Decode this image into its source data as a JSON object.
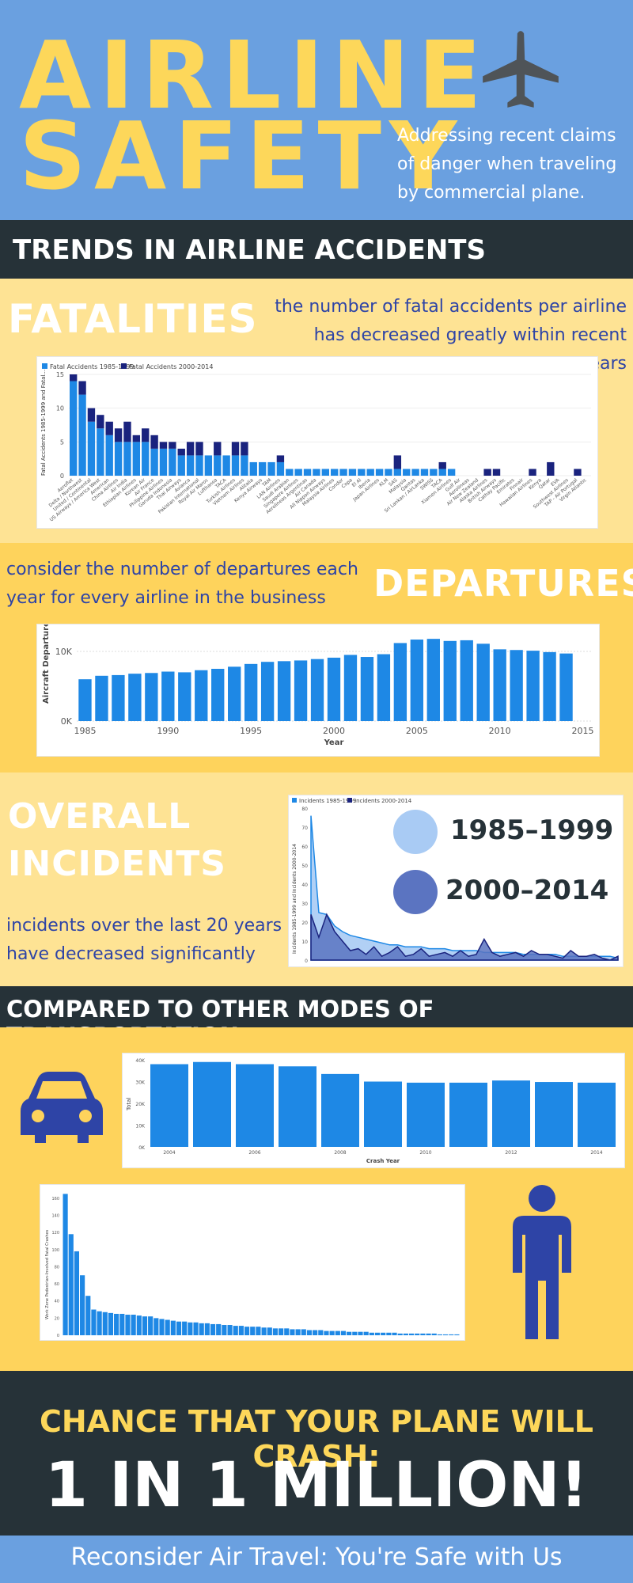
{
  "header": {
    "title_line1": "AIRLINE",
    "title_line2": "SAFETY",
    "subtitle": "Addressing recent claims of danger when traveling by commercial plane."
  },
  "sections": {
    "trends": "TRENDS IN AIRLINE ACCIDENTS",
    "fatalities": {
      "title": "FATALITIES",
      "text": "the number of fatal accidents per airline has decreased greatly within recent years"
    },
    "departures": {
      "title": "DEPARTURES",
      "text": "consider the number of departures each year for every airline in the business"
    },
    "incidents": {
      "title_line1": "OVERALL",
      "title_line2": "INCIDENTS",
      "text": "incidents over the last 20 years have decreased significantly",
      "legend1": "1985–1999",
      "legend2": "2000–2014"
    },
    "compare": "COMPARED TO OTHER MODES OF TRANSPORTATION",
    "chance_title": "CHANCE THAT YOUR PLANE WILL CRASH:",
    "chance_value": "1 IN 1 MILLION!",
    "footer": "Reconsider Air Travel: You're Safe with Us"
  },
  "icons": {
    "plane": "airplane-icon",
    "car": "car-icon",
    "pedestrian": "pedestrian-icon"
  },
  "colors": {
    "accent_yellow": "#fdd75a",
    "header_blue": "#6aa0e0",
    "dark": "#263238",
    "series_light": "#1e88e5",
    "series_dark": "#1a237e"
  },
  "chart_data": [
    {
      "type": "bar",
      "stacked": true,
      "legend": [
        "Fatal Accidents 1985-1999",
        "Fatal Accidents 2000-2014"
      ],
      "ylabel": "Fatal Accidents 1985-1999 and Fatal...",
      "yticks": [
        "0",
        "5",
        "10",
        "15"
      ],
      "ylim": [
        0,
        15
      ],
      "categories": [
        "Aeroflot",
        "Delta / Northwest",
        "United / Continental",
        "US Airways / America West",
        "American",
        "China Airlines",
        "Air India",
        "Ethiopian Airlines",
        "Korean Air",
        "Air France",
        "Philippine Airlines",
        "Garuda Indonesia",
        "Thai Airways",
        "Avianca",
        "Pakistan International",
        "Royal Air Maroc",
        "Lufthansa",
        "TACA",
        "Turkish Airlines",
        "Vietnam Airlines",
        "Alitalia",
        "Kenya Airways",
        "TAM",
        "LAN Airlines",
        "Saudi Arabian",
        "Singapore Airlines",
        "Aerolineas Argentinas",
        "Air Canada",
        "All Nippon Airways",
        "Malaysia Airlines",
        "Condor",
        "Copa",
        "El Al",
        "Iberia",
        "Japan Airlines",
        "KLM",
        "SAS",
        "Malaysia",
        "Qantas",
        "Sri Lankan / AirLanka",
        "SWISS",
        "TACA ",
        "Xiamen Airlines",
        "Gulf Air",
        "Aerolineas",
        "Air New Zealand",
        "Alaska Airlines",
        "British Airways",
        "Cathay Pacific",
        "Emirates",
        "Finnair",
        "Hawaiian Airlines",
        "Kenya",
        "Qatar",
        "EVA",
        "Southwest Airlines",
        "TAP - Air Portugal",
        "Virgin Atlantic"
      ],
      "series": [
        {
          "name": "Fatal Accidents 1985-1999",
          "values": [
            14,
            12,
            8,
            7,
            6,
            5,
            5,
            5,
            5,
            4,
            4,
            4,
            3,
            3,
            3,
            3,
            3,
            3,
            3,
            3,
            2,
            2,
            2,
            2,
            1,
            1,
            1,
            1,
            1,
            1,
            1,
            1,
            1,
            1,
            1,
            1,
            1,
            1,
            1,
            1,
            1,
            1,
            1,
            0,
            0,
            0,
            0,
            0,
            0,
            0,
            0,
            0,
            0,
            0,
            0,
            0,
            0,
            0
          ]
        },
        {
          "name": "Fatal Accidents 2000-2014",
          "values": [
            1,
            2,
            2,
            2,
            2,
            2,
            3,
            1,
            2,
            2,
            1,
            1,
            1,
            2,
            2,
            0,
            2,
            0,
            2,
            2,
            0,
            0,
            0,
            1,
            0,
            0,
            0,
            0,
            0,
            0,
            0,
            0,
            0,
            0,
            0,
            0,
            2,
            0,
            0,
            0,
            0,
            1,
            0,
            0,
            0,
            0,
            1,
            1,
            0,
            0,
            0,
            1,
            0,
            2,
            0,
            0,
            1,
            0
          ]
        }
      ]
    },
    {
      "type": "bar",
      "xlabel": "Year",
      "ylabel": "Aircraft Departures",
      "xticks": [
        "1985",
        "1990",
        "1995",
        "2000",
        "2005",
        "2010",
        "2015"
      ],
      "yticks": [
        "0K",
        "10K"
      ],
      "ylim": [
        0,
        12500
      ],
      "x": [
        1985,
        1986,
        1987,
        1988,
        1989,
        1990,
        1991,
        1992,
        1993,
        1994,
        1995,
        1996,
        1997,
        1998,
        1999,
        2000,
        2001,
        2002,
        2003,
        2004,
        2005,
        2006,
        2007,
        2008,
        2009,
        2010,
        2011,
        2012,
        2013,
        2014
      ],
      "values": [
        6000,
        6500,
        6600,
        6800,
        6900,
        7100,
        7000,
        7300,
        7500,
        7800,
        8200,
        8500,
        8600,
        8700,
        8900,
        9100,
        9500,
        9200,
        9600,
        11200,
        11700,
        11800,
        11500,
        11600,
        11100,
        10300,
        10200,
        10100,
        9900,
        9700
      ]
    },
    {
      "type": "area",
      "legend": [
        "Incidents 1985-1999",
        "Incidents 2000-2014"
      ],
      "ylabel": "Incidents 1985-1999 and Incidents 2000-2014",
      "yticks": [
        "0",
        "10",
        "20",
        "30",
        "40",
        "50",
        "60",
        "70",
        "80"
      ],
      "ylim": [
        0,
        80
      ],
      "series": [
        {
          "name": "Incidents 1985-1999",
          "values": [
            76,
            25,
            24,
            18,
            15,
            13,
            12,
            11,
            10,
            9,
            8,
            8,
            7,
            7,
            7,
            6,
            6,
            6,
            5,
            5,
            5,
            5,
            4,
            4,
            4,
            4,
            4,
            3,
            3,
            3,
            3,
            3,
            2,
            2,
            2,
            2,
            2,
            2,
            2,
            1
          ]
        },
        {
          "name": "Incidents 2000-2014",
          "values": [
            24,
            12,
            24,
            15,
            10,
            5,
            6,
            3,
            7,
            2,
            4,
            7,
            2,
            3,
            6,
            2,
            3,
            4,
            2,
            5,
            2,
            3,
            11,
            4,
            2,
            3,
            4,
            2,
            5,
            3,
            3,
            2,
            1,
            5,
            2,
            2,
            3,
            1,
            0,
            2
          ]
        }
      ]
    },
    {
      "type": "bar",
      "xlabel": "Crash Year",
      "ylabel": "Total",
      "xticks": [
        "2004",
        "2006",
        "2008",
        "2010",
        "2012",
        "2014"
      ],
      "yticks": [
        "0K",
        "10K",
        "20K",
        "30K",
        "40K"
      ],
      "ylim": [
        0,
        40000
      ],
      "x": [
        2004,
        2005,
        2006,
        2007,
        2008,
        2009,
        2010,
        2011,
        2012,
        2013,
        2014
      ],
      "values": [
        38000,
        39000,
        38000,
        37000,
        33500,
        30000,
        29500,
        29500,
        30500,
        29800,
        29500
      ]
    },
    {
      "type": "bar",
      "ylabel": "Work Zone Pedestrian-Involved Fatal Crashes",
      "yticks": [
        "0",
        "20",
        "40",
        "60",
        "80",
        "100",
        "120",
        "140",
        "160"
      ],
      "ylim": [
        0,
        170
      ],
      "values": [
        165,
        118,
        98,
        70,
        46,
        30,
        28,
        27,
        26,
        25,
        25,
        24,
        24,
        23,
        22,
        22,
        20,
        19,
        18,
        17,
        16,
        16,
        15,
        15,
        14,
        14,
        13,
        13,
        12,
        12,
        11,
        11,
        10,
        10,
        10,
        9,
        9,
        8,
        8,
        8,
        7,
        7,
        7,
        6,
        6,
        6,
        5,
        5,
        5,
        5,
        4,
        4,
        4,
        4,
        3,
        3,
        3,
        3,
        3,
        2,
        2,
        2,
        2,
        2,
        2,
        2,
        1,
        1,
        1,
        1
      ]
    }
  ]
}
